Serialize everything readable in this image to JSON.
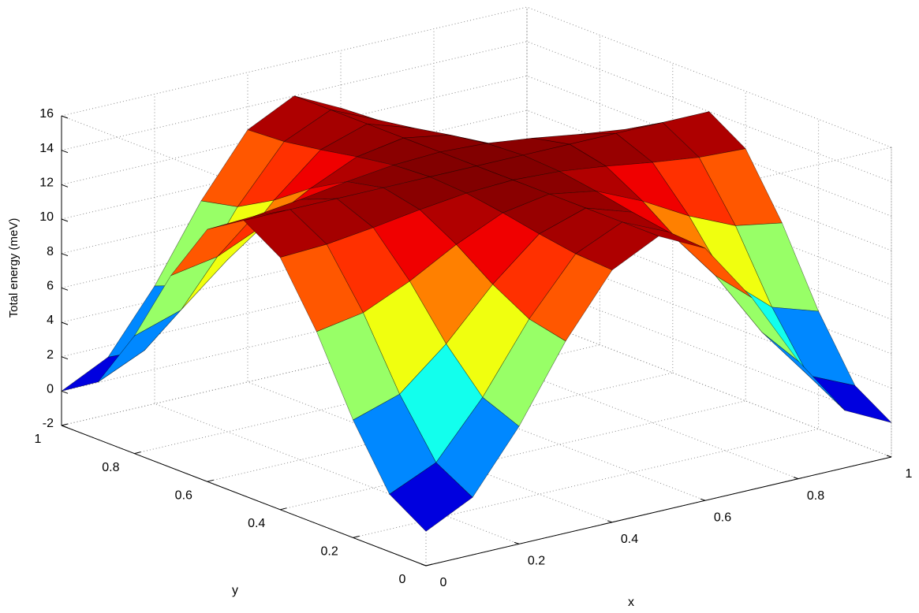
{
  "chart_data": {
    "type": "surface",
    "xlabel": "x",
    "ylabel": "y",
    "zlabel": "Total energy (meV)",
    "x": [
      0,
      0.1,
      0.2,
      0.3,
      0.4,
      0.5,
      0.6,
      0.7,
      0.8,
      0.9,
      1
    ],
    "y": [
      0,
      0.1,
      0.2,
      0.3,
      0.4,
      0.5,
      0.6,
      0.7,
      0.8,
      0.9,
      1
    ],
    "z": [
      [
        0,
        1.34,
        4.84,
        9.16,
        12.66,
        14,
        12.66,
        9.16,
        4.84,
        1.34,
        0
      ],
      [
        1.34,
        2.55,
        5.71,
        9.63,
        12.79,
        14,
        12.79,
        9.63,
        5.71,
        2.55,
        1.34
      ],
      [
        4.84,
        5.71,
        8.0,
        10.83,
        13.13,
        14,
        13.13,
        10.83,
        8.0,
        5.71,
        4.84
      ],
      [
        9.16,
        9.63,
        10.83,
        12.33,
        13.54,
        14,
        13.54,
        12.33,
        10.83,
        9.63,
        9.16
      ],
      [
        12.66,
        12.79,
        13.13,
        13.54,
        13.87,
        14,
        13.87,
        13.54,
        13.13,
        12.79,
        12.66
      ],
      [
        14,
        14,
        14,
        14,
        14,
        14,
        14,
        14,
        14,
        14,
        14
      ],
      [
        12.66,
        12.79,
        13.13,
        13.54,
        13.87,
        14,
        13.87,
        13.54,
        13.13,
        12.79,
        12.66
      ],
      [
        9.16,
        9.63,
        10.83,
        12.33,
        13.54,
        14,
        13.54,
        12.33,
        10.83,
        9.63,
        9.16
      ],
      [
        4.84,
        5.71,
        8.0,
        10.83,
        13.13,
        14,
        13.13,
        10.83,
        8.0,
        5.71,
        4.84
      ],
      [
        1.34,
        2.55,
        5.71,
        9.63,
        12.79,
        14,
        12.79,
        9.63,
        5.71,
        2.55,
        1.34
      ],
      [
        0,
        1.34,
        4.84,
        9.16,
        12.66,
        14,
        12.66,
        9.16,
        4.84,
        1.34,
        0
      ]
    ],
    "xlim": [
      0,
      1
    ],
    "ylim": [
      0,
      1
    ],
    "zlim": [
      -2,
      16
    ],
    "xticks": [
      0,
      0.2,
      0.4,
      0.6,
      0.8,
      1
    ],
    "yticks": [
      0,
      0.2,
      0.4,
      0.6,
      0.8,
      1
    ],
    "zticks": [
      -2,
      0,
      2,
      4,
      6,
      8,
      10,
      12,
      14,
      16
    ],
    "grid": true,
    "colormap": "jet",
    "edgecolor": "#000000"
  }
}
